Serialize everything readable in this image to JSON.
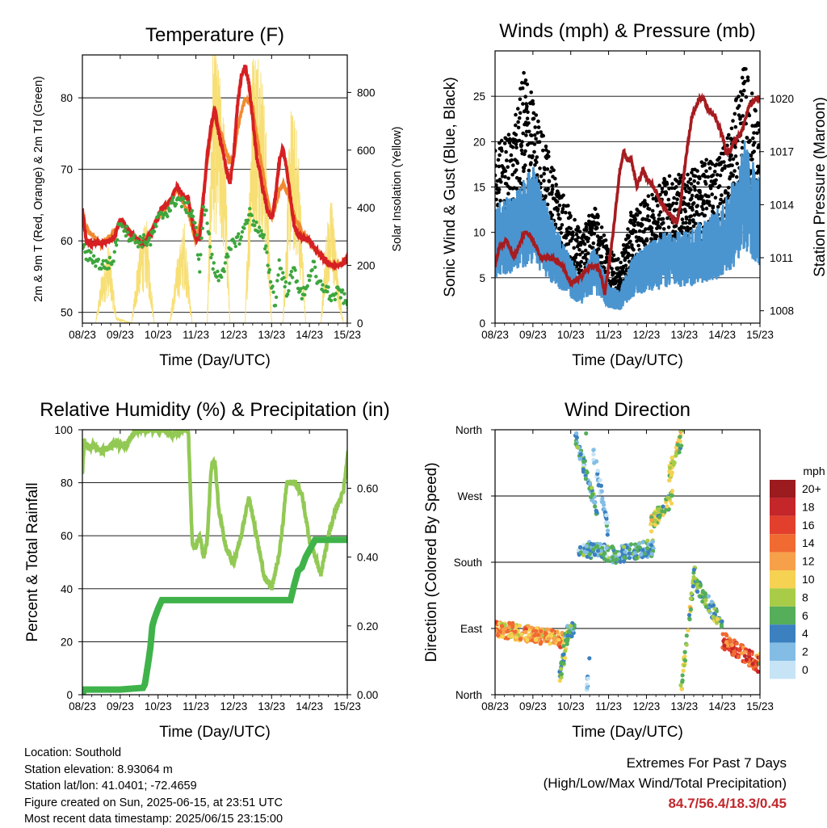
{
  "colors": {
    "temp_2m": "#d62023",
    "temp_9m": "#f08a30",
    "dewpoint": "#3da63d",
    "insolation": "#f7df75",
    "wind": "#4a95d0",
    "gust": "#000000",
    "pressure": "#a61c20",
    "rh": "#92c954",
    "precip": "#3fb34a",
    "extremes": "#c0282d"
  },
  "chart_data": [
    {
      "id": "temperature",
      "type": "line",
      "title": "Temperature (F)",
      "xlabel": "Time (Day/UTC)",
      "ylabel": "2m & 9m T (Red, Orange) & 2m Td (Green)",
      "ylabel_right": "Solar Insolation (Yellow)",
      "x_ticks": [
        "08/23",
        "09/23",
        "10/23",
        "11/23",
        "12/23",
        "13/23",
        "14/23",
        "15/23"
      ],
      "y_ticks": [
        50,
        60,
        70,
        80
      ],
      "ylim": [
        48.5,
        86
      ],
      "y2_ticks": [
        0,
        200,
        400,
        600,
        800
      ],
      "y2lim": [
        0,
        930
      ],
      "grid_y": [
        50,
        60,
        70,
        80
      ],
      "series": [
        {
          "key": "t2m",
          "x": [
            0,
            0.1,
            0.3,
            0.5,
            0.7,
            0.85,
            1,
            1.2,
            1.4,
            1.6,
            1.8,
            2,
            2.1,
            2.3,
            2.5,
            2.7,
            2.8,
            2.9,
            3,
            3.1,
            3.2,
            3.3,
            3.4,
            3.5,
            3.6,
            3.7,
            3.8,
            3.9,
            4,
            4.1,
            4.2,
            4.3,
            4.4,
            4.6,
            4.8,
            4.9,
            5,
            5.1,
            5.2,
            5.3,
            5.4,
            5.5,
            5.6,
            5.7,
            5.8,
            6,
            6.2,
            6.4,
            6.6,
            6.8,
            7,
            7.05,
            7.15,
            7.3,
            7.5,
            7.6,
            7.7,
            7.8,
            7.9,
            8
          ],
          "y": [
            64.5,
            60,
            59.6,
            59.7,
            60,
            60.5,
            63.1,
            61.5,
            60.5,
            59.5,
            60.8,
            63.5,
            64.5,
            65.3,
            67.5,
            66,
            66,
            63,
            60,
            60.5,
            66,
            72,
            76,
            78.5,
            75,
            73,
            70,
            68,
            72,
            79,
            83,
            84.5,
            82,
            72,
            66.5,
            64,
            63,
            66,
            71,
            73,
            70,
            66,
            62,
            61,
            60.5,
            60,
            58.5,
            57.5,
            56.5,
            56.5,
            57.5,
            59,
            61,
            62,
            64,
            65,
            65.8,
            64,
            64,
            64.3
          ]
        },
        {
          "key": "t9m",
          "x": [
            0,
            0.5,
            1,
            1.5,
            2,
            2.5,
            3,
            3.5,
            4,
            4.5,
            5,
            5.5,
            6,
            6.5,
            7,
            7.5,
            8
          ],
          "y": [
            63.8,
            59.4,
            62.6,
            59.3,
            63,
            67,
            59.8,
            78,
            71.5,
            80,
            63.5,
            65.5,
            59.6,
            56.8,
            57.2,
            62.5,
            63.8
          ]
        },
        {
          "key": "td2m",
          "x": [
            0,
            0.1,
            0.3,
            0.5,
            0.8,
            1,
            1.2,
            1.4,
            1.8,
            2,
            2.3,
            2.5,
            2.7,
            2.9,
            3,
            3.1,
            3.2,
            3.3,
            3.4,
            3.5,
            3.6,
            3.8,
            4,
            4.2,
            4.4,
            4.6,
            4.8,
            5,
            5.1,
            5.2,
            5.4,
            5.6,
            5.8,
            6,
            6.1,
            6.2,
            6.4,
            6.6,
            6.8,
            7,
            7.1,
            7.3,
            7.5,
            7.6,
            7.7,
            7.8,
            7.9,
            8
          ],
          "y": [
            59.5,
            58,
            57.5,
            56.5,
            57,
            63,
            61,
            60,
            60,
            63,
            64.5,
            66,
            65,
            64,
            62,
            55,
            65,
            63,
            58,
            55.5,
            55,
            57,
            60,
            60.5,
            64,
            62,
            60,
            54,
            51,
            57,
            53,
            56,
            52,
            55,
            57,
            54,
            53.5,
            52,
            53,
            51,
            52.5,
            53,
            51,
            53.5,
            55,
            54,
            52,
            53
          ]
        },
        {
          "key": "solar",
          "x": [
            0.35,
            0.5,
            0.7,
            0.9,
            1.3,
            1.5,
            1.7,
            1.9,
            2.3,
            2.5,
            2.7,
            2.9,
            3.3,
            3.45,
            3.6,
            3.75,
            3.9,
            4.3,
            4.5,
            4.7,
            4.85,
            5,
            5.3,
            5.5,
            5.7,
            5.9,
            6.3,
            6.45,
            6.6,
            6.75,
            6.9,
            7.3,
            7.5,
            7.7,
            7.85,
            8
          ],
          "y": [
            0,
            150,
            260,
            20,
            0,
            260,
            330,
            0,
            0,
            200,
            330,
            0,
            0,
            900,
            820,
            650,
            0,
            0,
            880,
            910,
            620,
            0,
            0,
            700,
            600,
            0,
            0,
            300,
            420,
            150,
            0,
            0,
            520,
            680,
            410,
            0
          ]
        }
      ]
    },
    {
      "id": "winds",
      "type": "scatter",
      "title": "Winds (mph) & Pressure (mb)",
      "xlabel": "Time (Day/UTC)",
      "ylabel": "Sonic Wind & Gust (Blue, Black)",
      "ylabel_right": "Station Pressure (Maroon)",
      "x_ticks": [
        "08/23",
        "09/23",
        "10/23",
        "11/23",
        "12/23",
        "13/23",
        "14/23",
        "15/23"
      ],
      "y_ticks": [
        0,
        5,
        10,
        15,
        20,
        25
      ],
      "ylim": [
        0,
        30
      ],
      "y2_ticks": [
        1008,
        1011,
        1014,
        1017,
        1020
      ],
      "y2lim": [
        1007.3,
        1022.7
      ],
      "grid_y": [
        5,
        10,
        15,
        20,
        25
      ],
      "series": [
        {
          "key": "wind_mean",
          "x": [
            0,
            0.5,
            1,
            1.5,
            2,
            2.3,
            2.6,
            3,
            3.3,
            3.6,
            4,
            4.5,
            5,
            5.5,
            6,
            6.3,
            6.6,
            7,
            7.3,
            7.6,
            8
          ],
          "y": [
            9,
            10,
            12,
            8,
            5,
            3.5,
            6,
            3,
            2.5,
            5,
            6,
            7,
            7,
            8,
            9,
            11,
            14,
            11,
            9,
            11,
            7
          ]
        },
        {
          "key": "gust_mean",
          "x": [
            0,
            0.5,
            0.8,
            1,
            1.5,
            2,
            2.3,
            2.6,
            3,
            3.3,
            3.6,
            4,
            4.5,
            5,
            5.5,
            6,
            6.3,
            6.6,
            7,
            7.3,
            7.6,
            8
          ],
          "y": [
            14,
            16,
            21,
            18,
            13,
            9,
            7,
            10,
            6,
            5,
            9,
            10,
            12,
            12,
            13,
            14,
            17,
            21,
            16,
            13,
            15,
            11
          ]
        },
        {
          "key": "pressure",
          "x": [
            0,
            0.1,
            0.3,
            0.5,
            0.8,
            1,
            1.2,
            1.5,
            1.8,
            2,
            2.3,
            2.5,
            2.7,
            2.8,
            2.9,
            3,
            3.1,
            3.2,
            3.3,
            3.4,
            3.5,
            3.6,
            3.75,
            3.9,
            4,
            4.2,
            4.4,
            4.6,
            4.8,
            4.9,
            5,
            5.1,
            5.2,
            5.4,
            5.5,
            5.6,
            5.8,
            6,
            6.1,
            6.2,
            6.3,
            6.5,
            6.7,
            6.9,
            7,
            7.1,
            7.2,
            7.3,
            7.5,
            7.7,
            7.8,
            7.9,
            8
          ],
          "y": [
            1010.5,
            1011.5,
            1012,
            1011,
            1012.5,
            1012,
            1011,
            1011,
            1010.5,
            1009.5,
            1010,
            1010.5,
            1010.5,
            1010,
            1009,
            1010.5,
            1012,
            1014,
            1016,
            1017,
            1016.5,
            1016.5,
            1015,
            1016,
            1015.5,
            1015,
            1014,
            1013.5,
            1013,
            1014,
            1016,
            1017.5,
            1019,
            1020,
            1020,
            1019.5,
            1019,
            1018,
            1017,
            1017,
            1017.5,
            1018,
            1019.5,
            1020,
            1020,
            1020,
            1020.5,
            1020,
            1020,
            1020.5,
            1021,
            1020.5,
            1019.5
          ]
        }
      ]
    },
    {
      "id": "humidity",
      "type": "line",
      "title": "Relative Humidity (%) & Precipitation (in)",
      "xlabel": "Time (Day/UTC)",
      "ylabel": "Percent & Total Rainfall",
      "x_ticks": [
        "08/23",
        "09/23",
        "10/23",
        "11/23",
        "12/23",
        "13/23",
        "14/23",
        "15/23"
      ],
      "y_ticks": [
        0,
        20,
        40,
        60,
        80,
        100
      ],
      "ylim": [
        0,
        100
      ],
      "y2_ticks": [
        0.0,
        0.2,
        0.4,
        0.6
      ],
      "y2_tick_labels": [
        "0.00",
        "0.20",
        "0.40",
        "0.60"
      ],
      "y2lim": [
        0,
        0.77
      ],
      "grid_y": [
        20,
        40,
        60,
        80
      ],
      "series": [
        {
          "key": "rh",
          "x": [
            0,
            0.05,
            0.15,
            0.3,
            0.5,
            0.7,
            0.9,
            1,
            1.2,
            1.4,
            1.6,
            1.8,
            2,
            2.2,
            2.4,
            2.6,
            2.8,
            2.9,
            3,
            3.1,
            3.2,
            3.3,
            3.4,
            3.5,
            3.6,
            3.8,
            4,
            4.2,
            4.4,
            4.6,
            4.8,
            5,
            5.2,
            5.3,
            5.4,
            5.6,
            5.8,
            6,
            6.2,
            6.3,
            6.5,
            6.7,
            6.9,
            7,
            7.2,
            7.3,
            7.5,
            7.6,
            7.7,
            7.8,
            7.9,
            8
          ],
          "y": [
            83,
            96,
            93,
            94,
            92,
            93,
            95,
            94,
            95,
            100,
            100,
            100,
            100,
            100,
            98,
            100,
            100,
            58,
            55,
            61,
            52,
            58,
            85,
            89,
            70,
            55,
            50,
            60,
            75,
            60,
            45,
            40,
            53,
            65,
            80,
            80,
            76,
            58,
            50,
            45,
            60,
            70,
            77,
            90,
            91,
            88,
            91,
            90,
            88,
            82,
            65,
            62
          ]
        },
        {
          "key": "precip",
          "x": [
            0,
            0.05,
            0.3,
            1,
            1.6,
            1.65,
            1.75,
            1.8,
            1.85,
            1.9,
            2,
            2.1,
            2.3,
            3,
            4,
            5,
            5.5,
            5.6,
            5.65,
            5.7,
            5.8,
            5.9,
            6,
            6.1,
            6.15,
            6.2,
            7,
            8
          ],
          "y": [
            0,
            0.015,
            0.015,
            0.015,
            0.02,
            0.03,
            0.1,
            0.14,
            0.2,
            0.22,
            0.25,
            0.275,
            0.275,
            0.275,
            0.275,
            0.275,
            0.275,
            0.32,
            0.34,
            0.36,
            0.37,
            0.4,
            0.42,
            0.44,
            0.45,
            0.45,
            0.45,
            0.45
          ]
        }
      ]
    },
    {
      "id": "direction",
      "type": "scatter",
      "title": "Wind Direction",
      "xlabel": "Time (Day/UTC)",
      "ylabel": "Direction (Colored By Speed)",
      "x_ticks": [
        "08/23",
        "09/23",
        "10/23",
        "11/23",
        "12/23",
        "13/23",
        "14/23",
        "15/23"
      ],
      "y_ticks": [
        "North",
        "East",
        "South",
        "West",
        "North"
      ],
      "ylim": [
        0,
        360
      ],
      "grid_y": [
        90,
        180,
        270
      ],
      "legend": {
        "title": "mph",
        "labels": [
          "20+",
          "18",
          "16",
          "14",
          "12",
          "10",
          "8",
          "6",
          "4",
          "2",
          "0"
        ],
        "colors": [
          "#9b1b1e",
          "#c4262a",
          "#e2402c",
          "#f06a32",
          "#f7a04a",
          "#f6d253",
          "#a8cc48",
          "#55ae5a",
          "#3b80bf",
          "#83bde6",
          "#c6e4f6"
        ]
      },
      "segments": [
        {
          "x0": 0.0,
          "x1": 1.8,
          "d0": 90,
          "d1": 75,
          "speed": 12
        },
        {
          "x0": 1.8,
          "x1": 2.1,
          "d0": 75,
          "d1": 95,
          "speed": 4
        },
        {
          "x0": 1.7,
          "x1": 2.0,
          "d0": 20,
          "d1": 100,
          "speed": 6
        },
        {
          "x0": 2.4,
          "x1": 2.5,
          "d0": 0,
          "d1": 50,
          "speed": 2
        },
        {
          "x0": 2.1,
          "x1": 2.7,
          "d0": 355,
          "d1": 250,
          "speed": 4
        },
        {
          "x0": 2.6,
          "x1": 3.0,
          "d0": 330,
          "d1": 220,
          "speed": 2
        },
        {
          "x0": 2.2,
          "x1": 3.2,
          "d0": 200,
          "d1": 190,
          "speed": 4
        },
        {
          "x0": 3.2,
          "x1": 4.2,
          "d0": 190,
          "d1": 200,
          "speed": 4
        },
        {
          "x0": 4.1,
          "x1": 4.7,
          "d0": 230,
          "d1": 270,
          "speed": 8
        },
        {
          "x0": 4.6,
          "x1": 5.0,
          "d0": 300,
          "d1": 360,
          "speed": 8
        },
        {
          "x0": 4.9,
          "x1": 5.3,
          "d0": 0,
          "d1": 180,
          "speed": 8
        },
        {
          "x0": 5.3,
          "x1": 6.0,
          "d0": 150,
          "d1": 95,
          "speed": 6
        },
        {
          "x0": 6.0,
          "x1": 7.0,
          "d0": 75,
          "d1": 40,
          "speed": 15
        },
        {
          "x0": 7.0,
          "x1": 8.0,
          "d0": 50,
          "d1": 120,
          "speed": 8
        }
      ]
    }
  ],
  "info": {
    "location": "Location: Southold",
    "elevation": "Station elevation: 8.93064 m",
    "latlon": "Station lat/lon: 41.0401; -72.4659",
    "created": "Figure created on Sun, 2025-06-15, at 23:51 UTC",
    "recent": "Most recent data timestamp: 2025/06/15 23:15:00"
  },
  "extremes": {
    "line1": "Extremes For Past 7 Days",
    "line2": "(High/Low/Max Wind/Total Precipitation)",
    "values": "84.7/56.4/18.3/0.45"
  }
}
